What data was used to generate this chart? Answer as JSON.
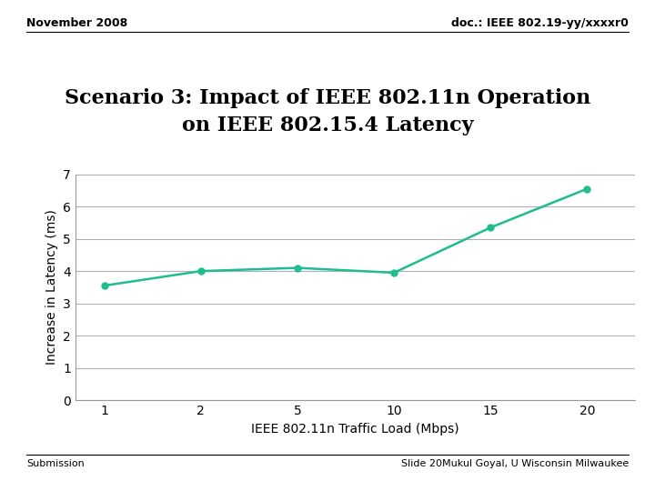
{
  "title_line1": "Scenario 3: Impact of IEEE 802.11n Operation",
  "title_line2": "on IEEE 802.15.4 Latency",
  "header_left": "November 2008",
  "header_right": "doc.: IEEE 802.19-yy/xxxxr0",
  "footer_left": "Submission",
  "footer_right": "Slide 20Mukul Goyal, U Wisconsin Milwaukee",
  "xlabel": "IEEE 802.11n Traffic Load (Mbps)",
  "ylabel": "Increase in Latency (ms)",
  "x_values": [
    1,
    2,
    5,
    10,
    15,
    20
  ],
  "y_values": [
    3.55,
    4.0,
    4.1,
    3.95,
    5.35,
    6.55
  ],
  "x_tick_labels": [
    "1",
    "2",
    "5",
    "10",
    "15",
    "20"
  ],
  "y_ticks": [
    0,
    1,
    2,
    3,
    4,
    5,
    6,
    7
  ],
  "ylim": [
    0,
    7
  ],
  "line_color": "#1DBD8E",
  "line_width": 1.8,
  "marker": "o",
  "marker_size": 5,
  "bg_color": "#ffffff",
  "grid_color": "#b0b0b0",
  "title_fontsize": 16,
  "axis_label_fontsize": 10,
  "tick_fontsize": 10,
  "header_fontsize": 9,
  "footer_fontsize": 8
}
